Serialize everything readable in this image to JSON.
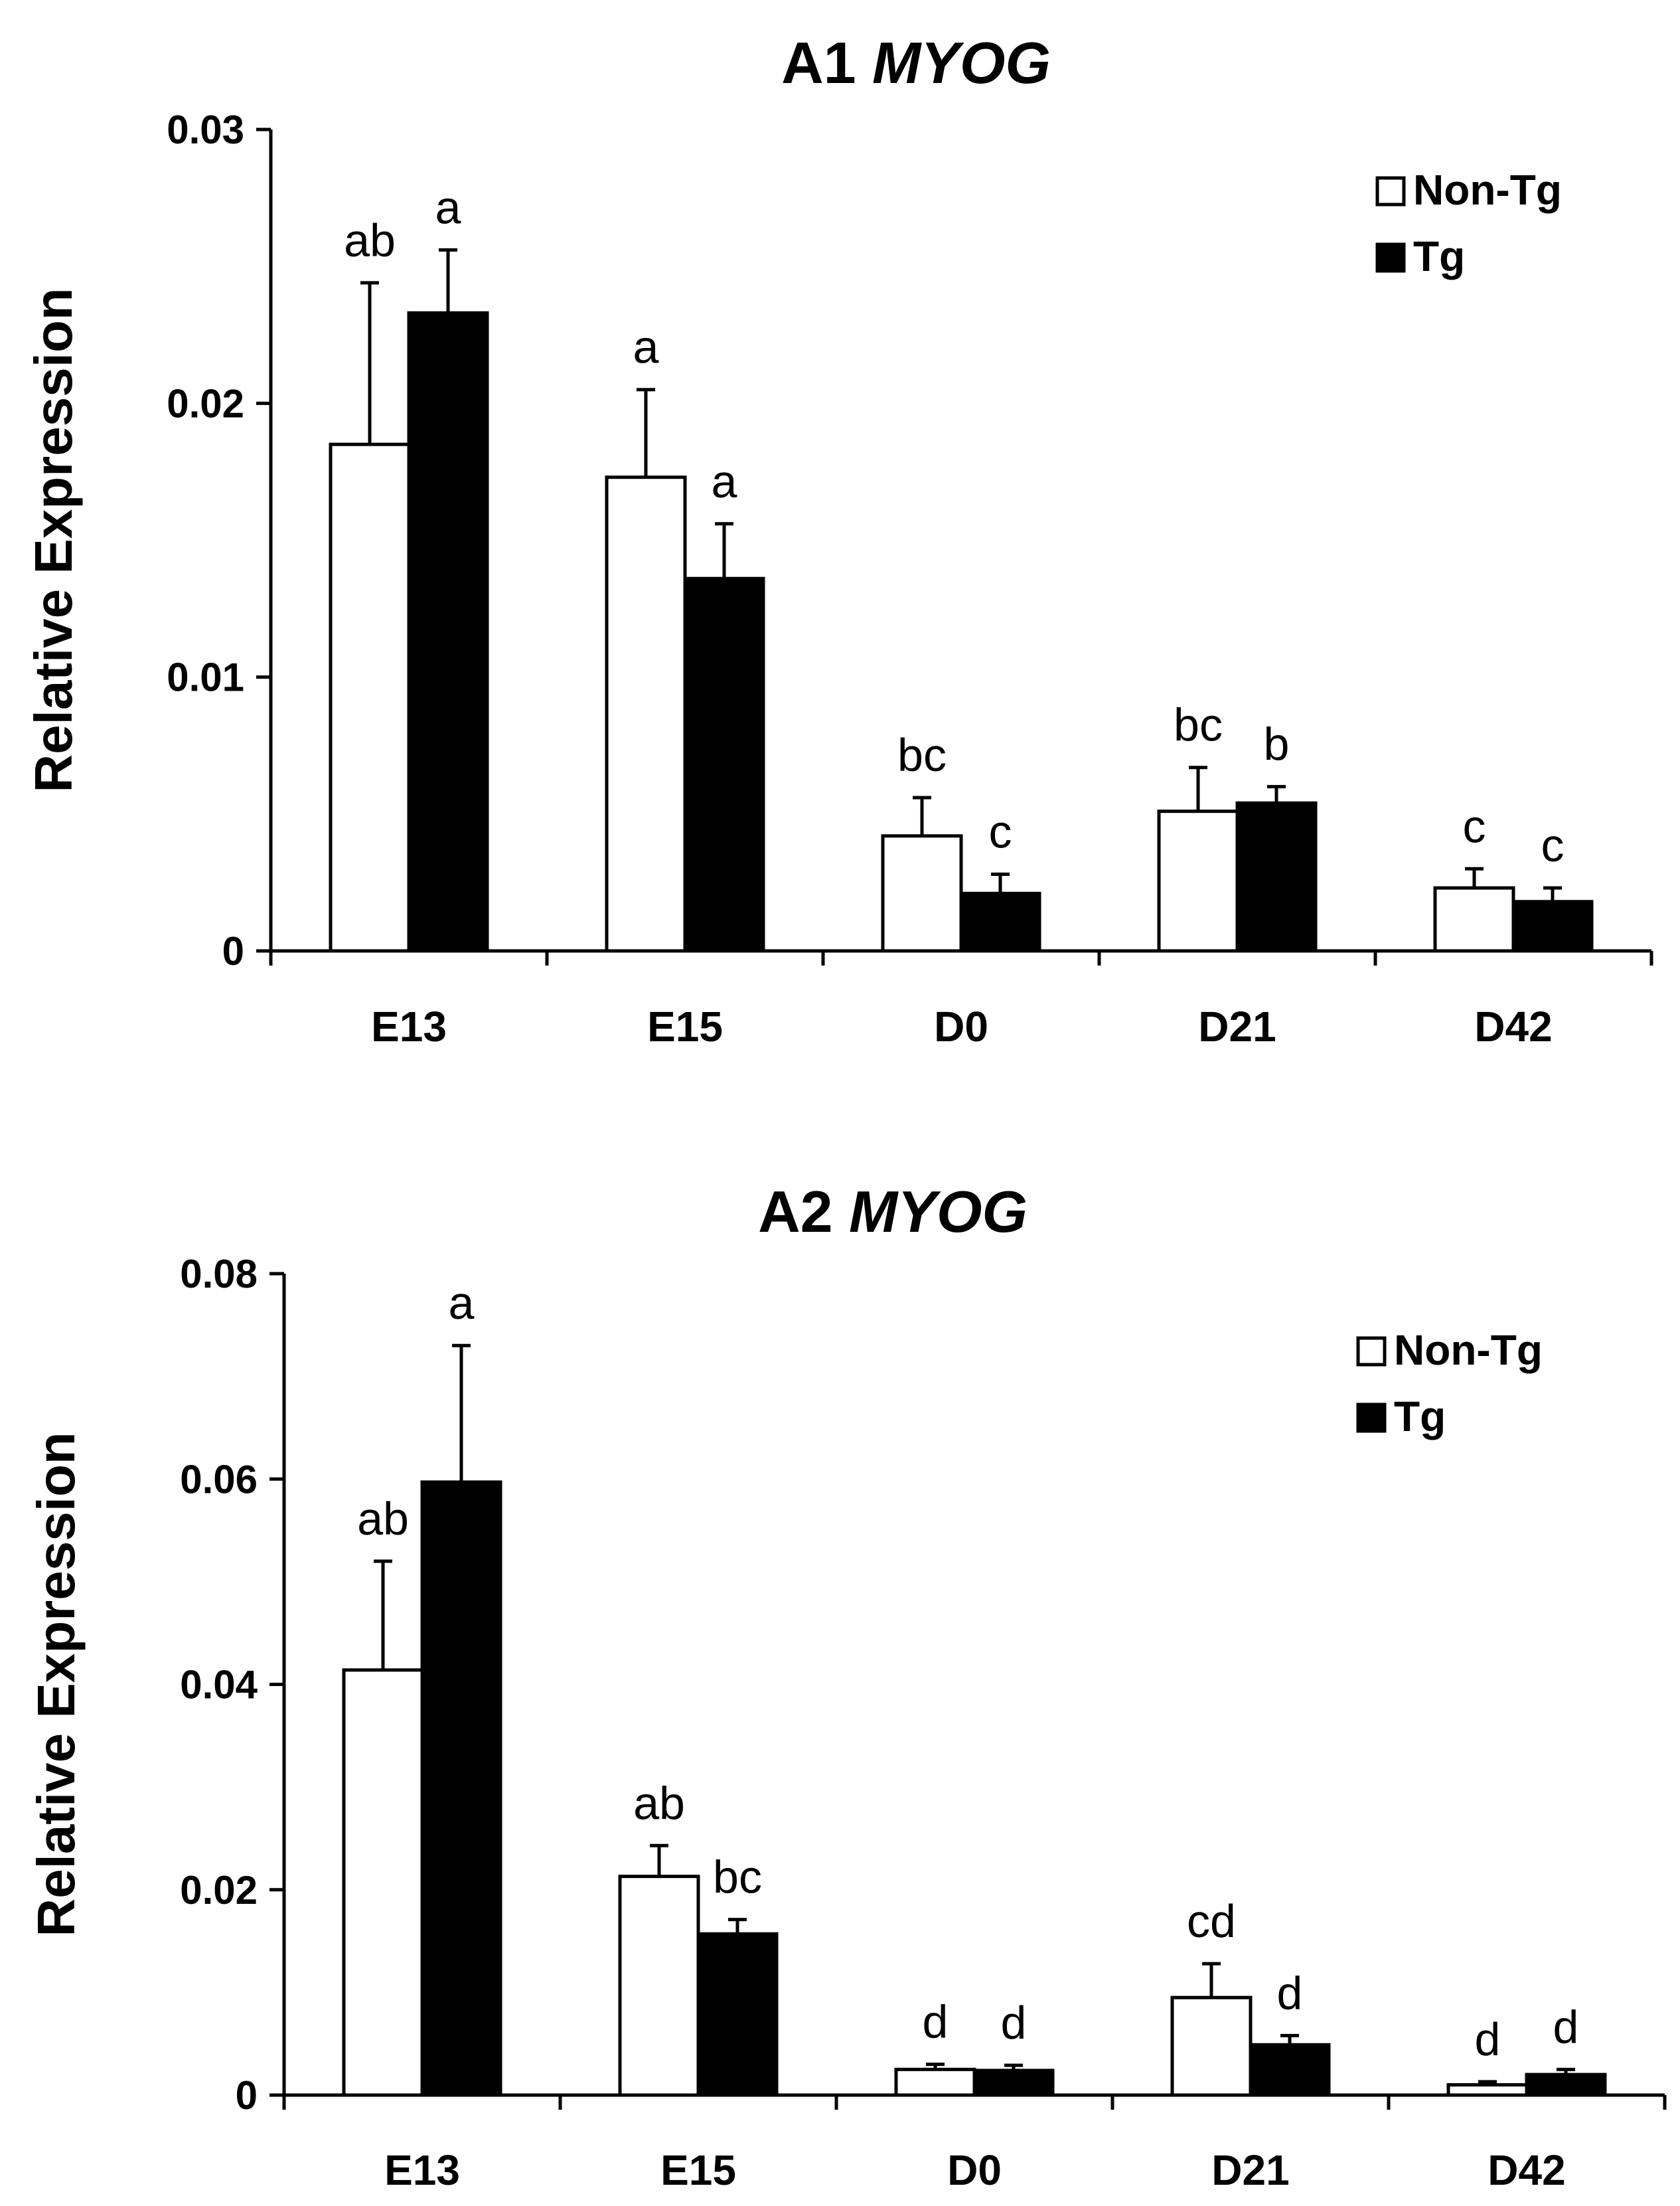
{
  "chart_data": [
    {
      "type": "bar",
      "title_prefix": "A1 ",
      "title_gene": "MYOG",
      "ylabel": "Relative Expression",
      "xlabel": "",
      "ylim": [
        0,
        0.03
      ],
      "yticks": [
        0,
        0.01,
        0.02,
        0.03
      ],
      "ytick_labels": [
        "0",
        "0.01",
        "0.02",
        "0.03"
      ],
      "categories": [
        "E13",
        "E15",
        "D0",
        "D21",
        "D42"
      ],
      "legend_position": "top-right",
      "series": [
        {
          "name": "Non-Tg",
          "color": "#ffffff",
          "values": [
            0.0185,
            0.0173,
            0.0042,
            0.0051,
            0.0023
          ],
          "errors": [
            0.0059,
            0.0032,
            0.0014,
            0.0016,
            0.0007
          ],
          "labels": [
            "ab",
            "a",
            "bc",
            "bc",
            "c"
          ]
        },
        {
          "name": "Tg",
          "color": "#000000",
          "values": [
            0.0233,
            0.0136,
            0.0021,
            0.0054,
            0.0018
          ],
          "errors": [
            0.0023,
            0.002,
            0.0007,
            0.0006,
            0.0005
          ],
          "labels": [
            "a",
            "a",
            "c",
            "b",
            "c"
          ]
        }
      ]
    },
    {
      "type": "bar",
      "title_prefix": "A2 ",
      "title_gene": "MYOG",
      "ylabel": "Relative Expression",
      "xlabel": "",
      "ylim": [
        0,
        0.08
      ],
      "yticks": [
        0,
        0.02,
        0.04,
        0.06,
        0.08
      ],
      "ytick_labels": [
        "0",
        "0.02",
        "0.04",
        "0.06",
        "0.08"
      ],
      "categories": [
        "E13",
        "E15",
        "D0",
        "D21",
        "D42"
      ],
      "legend_position": "top-right",
      "series": [
        {
          "name": "Non-Tg",
          "color": "#ffffff",
          "values": [
            0.0414,
            0.0213,
            0.0025,
            0.0095,
            0.001
          ],
          "errors": [
            0.0106,
            0.003,
            0.0005,
            0.0033,
            0.0003
          ],
          "labels": [
            "ab",
            "ab",
            "d",
            "cd",
            "d"
          ]
        },
        {
          "name": "Tg",
          "color": "#000000",
          "values": [
            0.0597,
            0.0157,
            0.0024,
            0.0049,
            0.002
          ],
          "errors": [
            0.0133,
            0.0014,
            0.0005,
            0.0009,
            0.0005
          ],
          "labels": [
            "a",
            "bc",
            "d",
            "d",
            "d"
          ]
        }
      ]
    }
  ]
}
